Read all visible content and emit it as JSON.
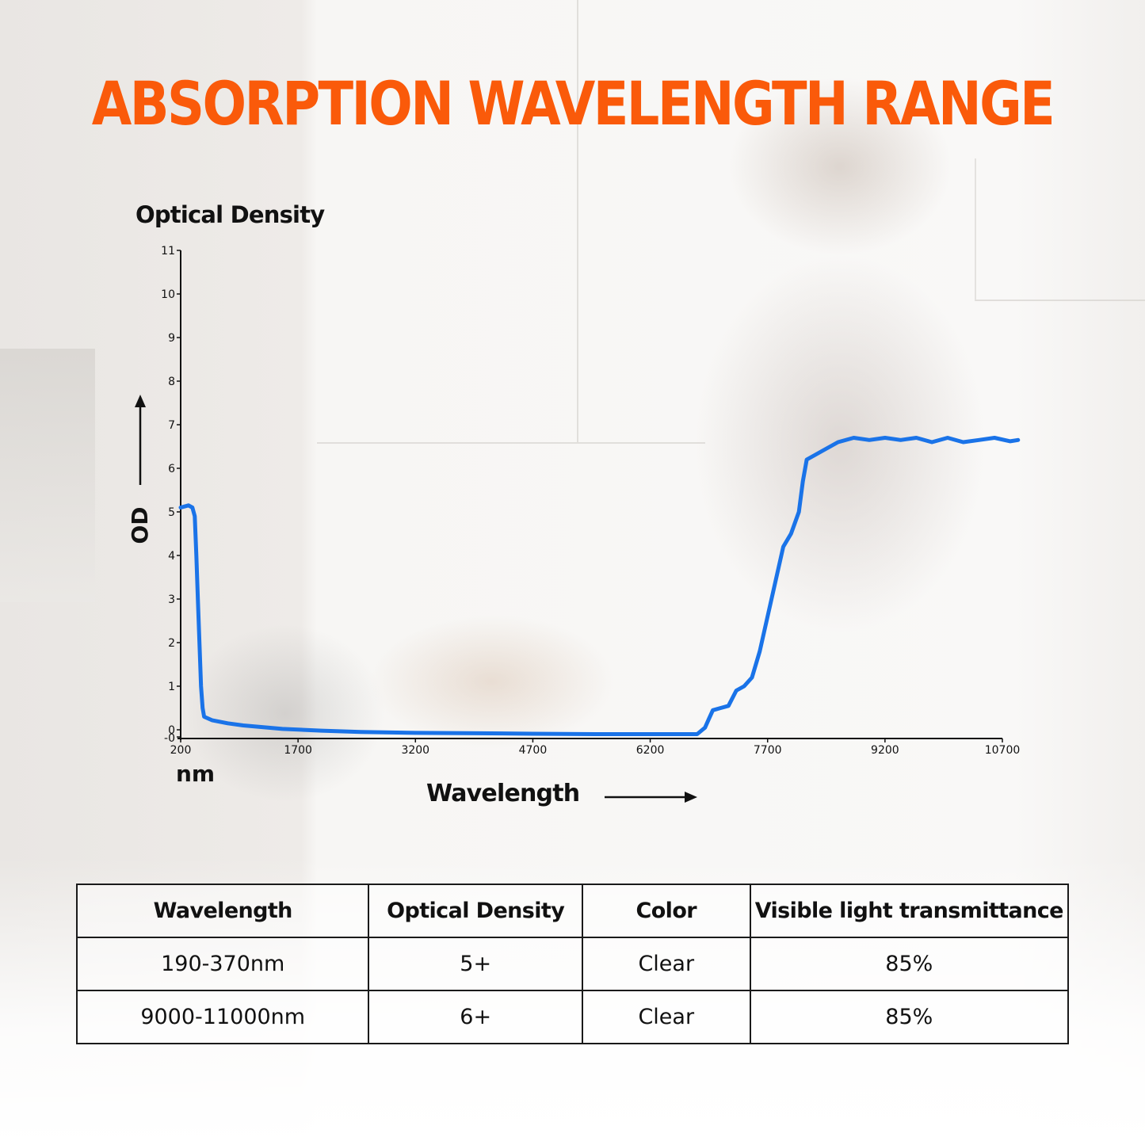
{
  "title": "ABSORPTION WAVELENGTH RANGE",
  "colors": {
    "title": "#fa5a0a",
    "curve": "#1a73e8",
    "axis": "#111111",
    "text": "#111111"
  },
  "chart": {
    "y_header": "Optical Density",
    "y_axis_label": "OD",
    "x_unit_label": "nm",
    "x_axis_label": "Wavelength",
    "y_ticks": [
      "11",
      "10",
      "9",
      "8",
      "7",
      "6",
      "5",
      "4",
      "3",
      "2",
      "1",
      "0",
      "-0"
    ],
    "x_ticks": [
      "200",
      "1700",
      "3200",
      "4700",
      "6200",
      "7700",
      "9200",
      "10700"
    ]
  },
  "chart_data": {
    "type": "line",
    "title": "ABSORPTION WAVELENGTH RANGE",
    "xlabel": "Wavelength (nm)",
    "ylabel": "OD (Optical Density)",
    "xlim": [
      200,
      10900
    ],
    "ylim": [
      -0.2,
      11
    ],
    "grid": false,
    "legend": null,
    "x_ticks": [
      200,
      1700,
      3200,
      4700,
      6200,
      7700,
      9200,
      10700
    ],
    "y_ticks": [
      0,
      1,
      2,
      3,
      4,
      5,
      6,
      7,
      8,
      9,
      10,
      11
    ],
    "series": [
      {
        "name": "Optical Density",
        "x": [
          200,
          300,
          350,
          380,
          400,
          420,
          440,
          460,
          480,
          500,
          600,
          800,
          1000,
          1500,
          2000,
          2500,
          3200,
          4000,
          4700,
          5500,
          6200,
          6800,
          6900,
          6950,
          7000,
          7100,
          7200,
          7300,
          7400,
          7500,
          7600,
          7700,
          7800,
          7900,
          8000,
          8100,
          8150,
          8200,
          8300,
          8400,
          8600,
          8800,
          9000,
          9200,
          9400,
          9600,
          9800,
          10000,
          10200,
          10400,
          10600,
          10800,
          10900
        ],
        "y": [
          5.1,
          5.15,
          5.1,
          4.9,
          4.0,
          3.0,
          2.0,
          1.0,
          0.5,
          0.3,
          0.22,
          0.15,
          0.1,
          0.02,
          -0.02,
          -0.05,
          -0.07,
          -0.08,
          -0.09,
          -0.1,
          -0.1,
          -0.1,
          0.05,
          0.25,
          0.45,
          0.5,
          0.55,
          0.9,
          1.0,
          1.2,
          1.8,
          2.6,
          3.4,
          4.2,
          4.5,
          5.0,
          5.7,
          6.2,
          6.3,
          6.4,
          6.6,
          6.7,
          6.65,
          6.7,
          6.65,
          6.7,
          6.6,
          6.7,
          6.6,
          6.65,
          6.7,
          6.62,
          6.65
        ]
      }
    ],
    "annotations": [
      "Optical Density",
      "OD ↑",
      "nm",
      "Wavelength →"
    ]
  },
  "table": {
    "headers": [
      "Wavelength",
      "Optical Density",
      "Color",
      "Visible light transmittance"
    ],
    "rows": [
      [
        "190-370nm",
        "5+",
        "Clear",
        "85%"
      ],
      [
        "9000-11000nm",
        "6+",
        "Clear",
        "85%"
      ]
    ]
  }
}
